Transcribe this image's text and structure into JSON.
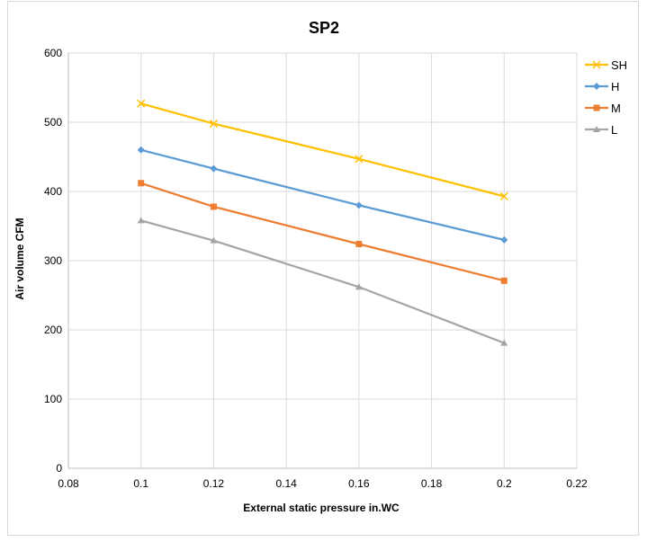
{
  "chart_data": {
    "type": "line",
    "title": "SP2",
    "xlabel": "External static pressure   in.WC",
    "ylabel": "Air volume  CFM",
    "xlim": [
      0.08,
      0.22
    ],
    "ylim": [
      0,
      600
    ],
    "xticks": [
      "0.08",
      "0.1",
      "0.12",
      "0.14",
      "0.16",
      "0.18",
      "0.2",
      "0.22"
    ],
    "yticks": [
      "0",
      "100",
      "200",
      "300",
      "400",
      "500",
      "600"
    ],
    "grid": true,
    "legend_position": "right",
    "x": [
      0.1,
      0.12,
      0.16,
      0.2
    ],
    "series": [
      {
        "name": "SH",
        "values": [
          527,
          498,
          447,
          393
        ],
        "color": "#ffc000",
        "marker": "x"
      },
      {
        "name": "H",
        "values": [
          460,
          433,
          380,
          330
        ],
        "color": "#5b9bd5",
        "marker": "diamond"
      },
      {
        "name": "M",
        "values": [
          412,
          378,
          324,
          271
        ],
        "color": "#ed7d31",
        "marker": "square"
      },
      {
        "name": "L",
        "values": [
          358,
          329,
          262,
          181
        ],
        "color": "#a5a5a5",
        "marker": "triangle"
      }
    ]
  }
}
